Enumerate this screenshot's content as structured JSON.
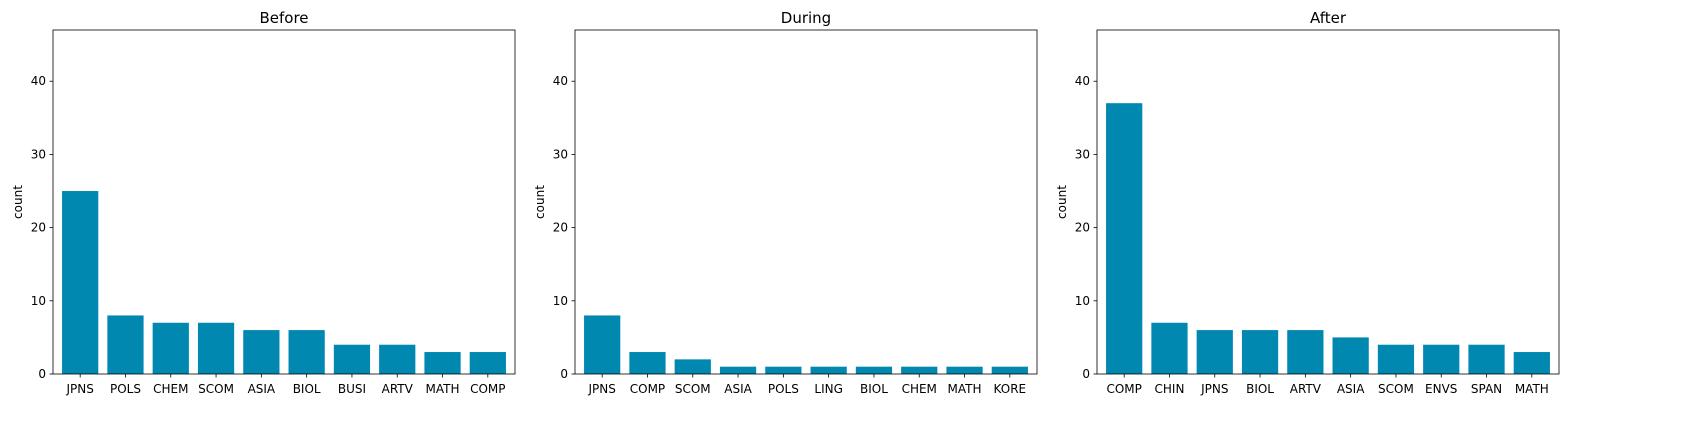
{
  "chart_data": [
    {
      "type": "bar",
      "title": "Before",
      "xlabel": "",
      "ylabel": "count",
      "ylim": [
        0,
        47
      ],
      "yticks": [
        0,
        10,
        20,
        30,
        40
      ],
      "color": "#0088b0",
      "categories": [
        "JPNS",
        "POLS",
        "CHEM",
        "SCOM",
        "ASIA",
        "BIOL",
        "BUSI",
        "ARTV",
        "MATH",
        "COMP"
      ],
      "values": [
        25,
        8,
        7,
        7,
        6,
        6,
        4,
        4,
        3,
        3
      ]
    },
    {
      "type": "bar",
      "title": "During",
      "xlabel": "",
      "ylabel": "count",
      "ylim": [
        0,
        47
      ],
      "yticks": [
        0,
        10,
        20,
        30,
        40
      ],
      "color": "#0088b0",
      "categories": [
        "JPNS",
        "COMP",
        "SCOM",
        "ASIA",
        "POLS",
        "LING",
        "BIOL",
        "CHEM",
        "MATH",
        "KORE"
      ],
      "values": [
        8,
        3,
        2,
        1,
        1,
        1,
        1,
        1,
        1,
        1
      ]
    },
    {
      "type": "bar",
      "title": "After",
      "xlabel": "",
      "ylabel": "count",
      "ylim": [
        0,
        47
      ],
      "yticks": [
        0,
        10,
        20,
        30,
        40
      ],
      "color": "#0088b0",
      "categories": [
        "COMP",
        "CHIN",
        "JPNS",
        "BIOL",
        "ARTV",
        "ASIA",
        "SCOM",
        "ENVS",
        "SPAN",
        "MATH"
      ],
      "values": [
        37,
        7,
        6,
        6,
        6,
        5,
        4,
        4,
        4,
        3
      ]
    }
  ]
}
